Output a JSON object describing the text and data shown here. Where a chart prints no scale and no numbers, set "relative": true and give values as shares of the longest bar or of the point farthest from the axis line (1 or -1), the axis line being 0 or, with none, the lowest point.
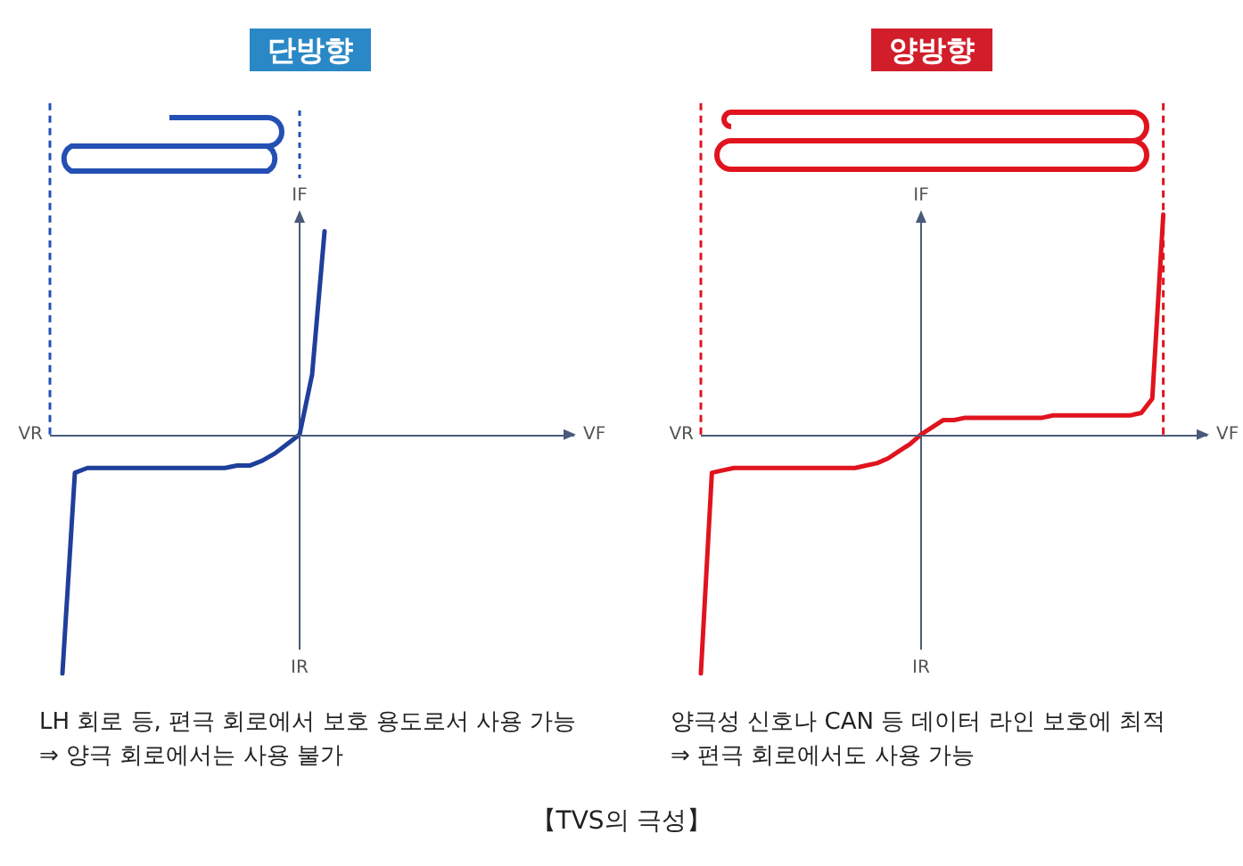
{
  "chart_data": [
    {
      "type": "line",
      "title": "단방향",
      "relative": true,
      "xlabel": "VF",
      "ylabel": "IF",
      "marker": "none",
      "line_style": "solid",
      "grid": false,
      "ref_lines": [
        {
          "axis": "y",
          "value": 0,
          "color": "#4a5a7a"
        }
      ],
      "categories": [
        null,
        null,
        null,
        null,
        null,
        null,
        null,
        null,
        null,
        null,
        null,
        null,
        null,
        null,
        null,
        null,
        null,
        null,
        null,
        null,
        null,
        null,
        null,
        null,
        null,
        null,
        null,
        null,
        null,
        null,
        null,
        null,
        null,
        null,
        null,
        null,
        null,
        null,
        null,
        null,
        null,
        null,
        null
      ],
      "series": [
        {
          "color": "#1f3f9a",
          "values": [
            null,
            -1,
            -0.16,
            -0.14,
            -0.14,
            -0.14,
            -0.14,
            -0.14,
            -0.14,
            -0.14,
            -0.14,
            -0.14,
            -0.14,
            -0.14,
            -0.14,
            -0.13,
            -0.13,
            -0.11,
            -0.08,
            -0.04,
            0,
            0.25,
            0.85,
            null,
            null,
            null,
            null,
            null,
            null,
            null,
            null,
            null,
            null,
            null,
            null,
            null,
            null,
            null,
            null,
            null,
            null,
            null,
            null
          ]
        }
      ],
      "annotations": [
        "VR",
        "IR",
        "LH 회로 등, 편극 회로에서 보호 용도로서 사용 가능",
        "⇒ 양극 회로에서는 사용 불가"
      ]
    },
    {
      "type": "line",
      "title": "양방향",
      "relative": true,
      "xlabel": "VF",
      "ylabel": "IF",
      "marker": "none",
      "line_style": "solid",
      "grid": false,
      "ref_lines": [
        {
          "axis": "y",
          "value": 0,
          "color": "#4a5a7a"
        }
      ],
      "categories": [
        null,
        null,
        null,
        null,
        null,
        null,
        null,
        null,
        null,
        null,
        null,
        null,
        null,
        null,
        null,
        null,
        null,
        null,
        null,
        null,
        null,
        null,
        null,
        null,
        null,
        null,
        null,
        null,
        null,
        null,
        null,
        null,
        null,
        null,
        null,
        null,
        null,
        null,
        null,
        null,
        null,
        null,
        null,
        null,
        null,
        null,
        null
      ],
      "series": [
        {
          "color": "#e0141e",
          "values": [
            -1,
            -0.16,
            -0.15,
            -0.14,
            -0.14,
            -0.14,
            -0.14,
            -0.14,
            -0.14,
            -0.14,
            -0.14,
            -0.14,
            -0.14,
            -0.14,
            -0.14,
            -0.13,
            -0.12,
            -0.1,
            -0.07,
            -0.04,
            0,
            0.03,
            0.06,
            0.06,
            0.07,
            0.07,
            0.07,
            0.07,
            0.07,
            0.07,
            0.07,
            0.07,
            0.08,
            0.08,
            0.08,
            0.08,
            0.08,
            0.08,
            0.08,
            0.08,
            0.09,
            0.15,
            0.92,
            null,
            null,
            null,
            null
          ]
        }
      ],
      "annotations": [
        "VR",
        "IR",
        "양극성 신호나 CAN 등 데이터 라인 보호에 최적",
        "⇒ 편극 회로에서도 사용 가능",
        "【TVS의 극성】"
      ]
    }
  ]
}
